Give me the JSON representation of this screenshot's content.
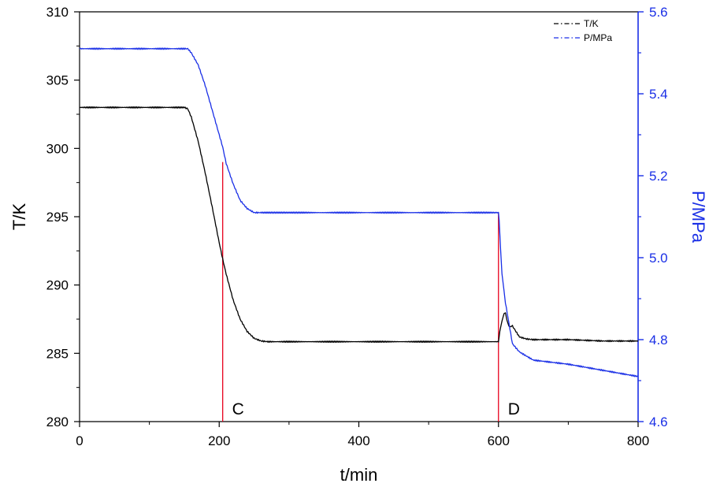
{
  "chart_data": {
    "type": "line",
    "title": "",
    "xlabel": "t/min",
    "ylabel_left": "T/K",
    "ylabel_right": "P/MPa",
    "xlim": [
      0,
      800
    ],
    "ylim_left": [
      280,
      310
    ],
    "ylim_right": [
      4.6,
      5.6
    ],
    "x_ticks": [
      "0",
      "200",
      "400",
      "600",
      "800"
    ],
    "y_left_ticks": [
      "280",
      "285",
      "290",
      "295",
      "300",
      "305",
      "310"
    ],
    "y_right_ticks": [
      "4.6",
      "4.8",
      "5.0",
      "5.2",
      "5.4",
      "5.6"
    ],
    "grid": false,
    "legend_position": "top-right",
    "colors": {
      "temperature": "#000000",
      "pressure": "#1a2fe6",
      "marker": "#e8001c",
      "right_axis": "#1a2fe6"
    },
    "series": [
      {
        "name": "T/K",
        "axis": "left",
        "color": "#000000",
        "x": [
          0,
          150,
          155,
          160,
          170,
          180,
          190,
          200,
          205,
          210,
          220,
          230,
          240,
          250,
          260,
          270,
          300,
          400,
          500,
          600,
          602,
          605,
          608,
          610,
          612,
          615,
          618,
          620,
          625,
          630,
          640,
          650,
          700,
          750,
          800
        ],
        "y": [
          303,
          303,
          302.9,
          302.3,
          300.5,
          298.2,
          295.7,
          293.1,
          291.9,
          290.8,
          288.9,
          287.5,
          286.6,
          286.1,
          285.9,
          285.85,
          285.85,
          285.85,
          285.85,
          285.85,
          286.6,
          287.3,
          287.9,
          288.0,
          287.5,
          287.0,
          286.9,
          287.0,
          286.6,
          286.2,
          286.05,
          286.0,
          286.0,
          285.9,
          285.9
        ]
      },
      {
        "name": "P/MPa",
        "axis": "right",
        "color": "#1a2fe6",
        "x": [
          0,
          150,
          155,
          160,
          170,
          180,
          190,
          200,
          205,
          210,
          220,
          230,
          240,
          250,
          260,
          300,
          400,
          500,
          600,
          601,
          603,
          605,
          608,
          610,
          615,
          620,
          630,
          650,
          700,
          750,
          800
        ],
        "y": [
          5.51,
          5.51,
          5.51,
          5.5,
          5.47,
          5.42,
          5.36,
          5.3,
          5.27,
          5.23,
          5.18,
          5.14,
          5.12,
          5.11,
          5.11,
          5.11,
          5.11,
          5.11,
          5.11,
          5.09,
          5.02,
          4.96,
          4.92,
          4.89,
          4.84,
          4.79,
          4.77,
          4.75,
          4.74,
          4.725,
          4.71
        ]
      }
    ],
    "markers": [
      {
        "label": "C",
        "x": 205,
        "y_top_left": 299
      },
      {
        "label": "D",
        "x": 600,
        "y_top_left": 295.3
      }
    ]
  }
}
